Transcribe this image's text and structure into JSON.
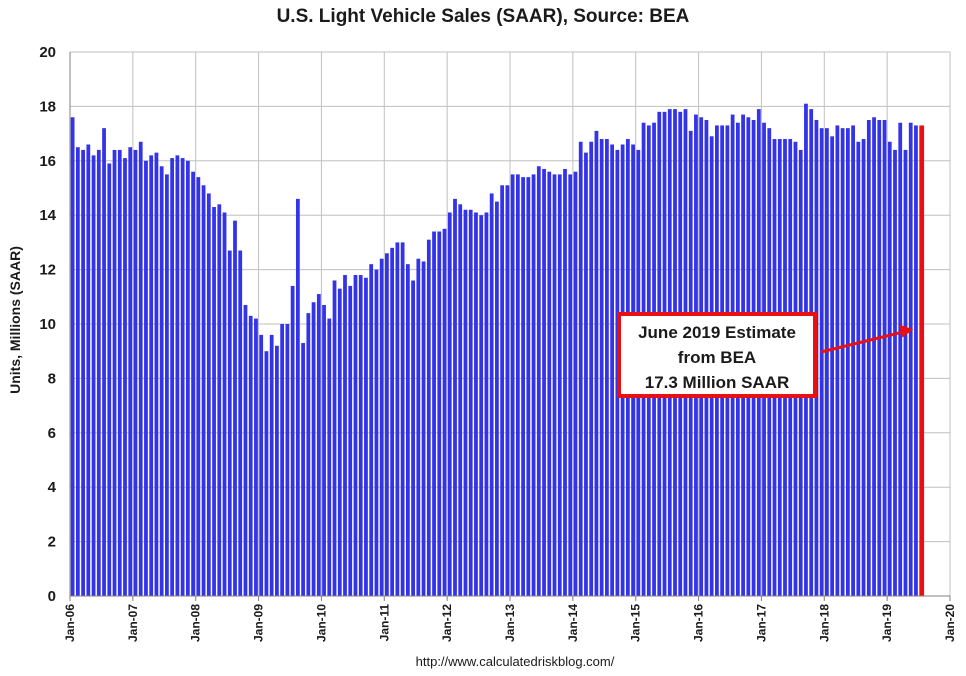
{
  "chart_data": {
    "type": "bar",
    "title": "U.S. Light Vehicle Sales (SAAR), Source: BEA",
    "ylabel": "Units, Millions (SAAR)",
    "xlabel": "",
    "ylim": [
      0,
      20
    ],
    "yticks": [
      0,
      2,
      4,
      6,
      8,
      10,
      12,
      14,
      16,
      18,
      20
    ],
    "xtick_labels": [
      "Jan-06",
      "Jan-07",
      "Jan-08",
      "Jan-09",
      "Jan-10",
      "Jan-11",
      "Jan-12",
      "Jan-13",
      "Jan-14",
      "Jan-15",
      "Jan-16",
      "Jan-17",
      "Jan-18",
      "Jan-19",
      "Jan-20"
    ],
    "grid": true,
    "start_month": "Jan-06",
    "series": [
      {
        "color": "#3333e8",
        "values": [
          17.6,
          16.5,
          16.4,
          16.6,
          16.2,
          16.4,
          17.2,
          15.9,
          16.4,
          16.4,
          16.1,
          16.5,
          16.4,
          16.7,
          16.0,
          16.2,
          16.3,
          15.8,
          15.5,
          16.1,
          16.2,
          16.1,
          16.0,
          15.6,
          15.4,
          15.1,
          14.8,
          14.3,
          14.4,
          14.1,
          12.7,
          13.8,
          12.7,
          10.7,
          10.3,
          10.2,
          9.6,
          9.0,
          9.6,
          9.2,
          10.0,
          10.0,
          11.4,
          14.6,
          9.3,
          10.4,
          10.8,
          11.1,
          10.7,
          10.2,
          11.6,
          11.3,
          11.8,
          11.4,
          11.8,
          11.8,
          11.7,
          12.2,
          12.0,
          12.4,
          12.6,
          12.8,
          13.0,
          13.0,
          12.2,
          11.6,
          12.4,
          12.3,
          13.1,
          13.4,
          13.4,
          13.5,
          14.1,
          14.6,
          14.4,
          14.2,
          14.2,
          14.1,
          14.0,
          14.1,
          14.8,
          14.5,
          15.1,
          15.1,
          15.5,
          15.5,
          15.4,
          15.4,
          15.5,
          15.8,
          15.7,
          15.6,
          15.5,
          15.5,
          15.7,
          15.5,
          15.6,
          16.7,
          16.3,
          16.7,
          17.1,
          16.8,
          16.8,
          16.6,
          16.4,
          16.6,
          16.8,
          16.6,
          16.4,
          17.4,
          17.3,
          17.4,
          17.8,
          17.8,
          17.9,
          17.9,
          17.8,
          17.9,
          17.1,
          17.7,
          17.6,
          17.5,
          16.9,
          17.3,
          17.3,
          17.3,
          17.7,
          17.4,
          17.7,
          17.6,
          17.5,
          17.9,
          17.4,
          17.2,
          16.8,
          16.8,
          16.8,
          16.8,
          16.7,
          16.4,
          18.1,
          17.9,
          17.5,
          17.2,
          17.2,
          16.9,
          17.3,
          17.2,
          17.2,
          17.3,
          16.7,
          16.8,
          17.5,
          17.6,
          17.5,
          17.5,
          16.7,
          16.4,
          17.4,
          16.4,
          17.4,
          17.3
        ]
      }
    ],
    "highlight": {
      "label": "Jun-19",
      "value": 17.3,
      "color": "#e81010"
    },
    "annotation": {
      "lines": [
        "June 2019 Estimate",
        "from BEA",
        "17.3 Million SAAR"
      ],
      "border_color": "#e81010",
      "arrow_target_value": 9.8
    }
  },
  "source_url": "http://www.calculatedriskblog.com/"
}
